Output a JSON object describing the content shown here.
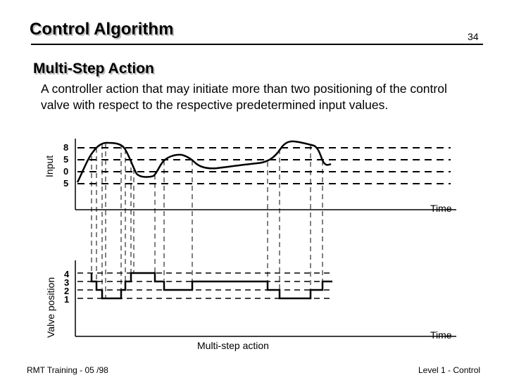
{
  "slide": {
    "title": "Control Algorithm",
    "page_number": "34",
    "heading": "Multi-Step Action",
    "definition": "A controller action that may initiate more than two positioning of the control valve with respect to the respective predetermined input values."
  },
  "diagram": {
    "input_axis_label": "Input",
    "input_ticks": [
      "8",
      "5",
      "0",
      "5"
    ],
    "input_time_label": "Time",
    "valve_axis_label": "Valve position",
    "valve_ticks": [
      "4",
      "3",
      "2",
      "1"
    ],
    "valve_time_label": "Time",
    "caption": "Multi-step action"
  },
  "footer": {
    "left": "RMT Training  -  05 /98",
    "right": "Level 1 - Control"
  }
}
